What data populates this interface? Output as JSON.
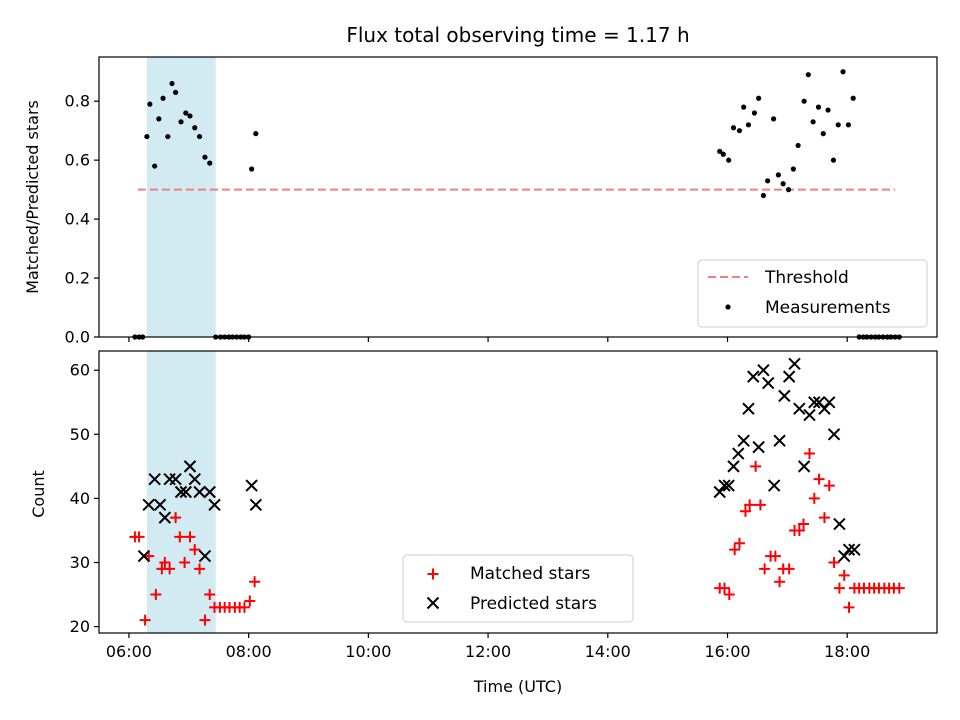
{
  "chart_data": [
    {
      "type": "scatter",
      "title": "Flux total observing time = 1.17 h",
      "xlabel": "",
      "ylabel": "Matched/Predicted stars",
      "xlim": [
        5.5,
        19.5
      ],
      "ylim": [
        0.0,
        0.95
      ],
      "yticks": [
        0.0,
        0.2,
        0.4,
        0.6,
        0.8
      ],
      "ytick_labels": [
        "0.0",
        "0.2",
        "0.4",
        "0.6",
        "0.8"
      ],
      "shaded_span": [
        6.3,
        7.45
      ],
      "shade_color": "#add8e6",
      "threshold": {
        "name": "Threshold",
        "y": 0.5,
        "x_range": [
          6.15,
          18.8
        ],
        "color": "#f08080"
      },
      "legend": {
        "position": "lower-right",
        "entries": [
          "Threshold",
          "Measurements"
        ]
      },
      "series": [
        {
          "name": "Measurements",
          "color": "#000000",
          "marker": "dot",
          "x": [
            6.1,
            6.17,
            6.23,
            6.3,
            6.35,
            6.43,
            6.5,
            6.57,
            6.65,
            6.72,
            6.78,
            6.87,
            6.95,
            7.02,
            7.1,
            7.18,
            7.27,
            7.35,
            7.45,
            7.53,
            7.6,
            7.67,
            7.73,
            7.8,
            7.87,
            7.93,
            8.0,
            8.05,
            8.12,
            15.87,
            15.93,
            16.02,
            16.1,
            16.2,
            16.27,
            16.35,
            16.45,
            16.52,
            16.6,
            16.67,
            16.77,
            16.85,
            16.93,
            17.02,
            17.1,
            17.18,
            17.28,
            17.35,
            17.43,
            17.52,
            17.6,
            17.68,
            17.77,
            17.85,
            17.93,
            18.02,
            18.1,
            18.2,
            18.27,
            18.33,
            18.4,
            18.47,
            18.53,
            18.6,
            18.67,
            18.73,
            18.8,
            18.87
          ],
          "y": [
            0.0,
            0.0,
            0.0,
            0.68,
            0.79,
            0.58,
            0.74,
            0.81,
            0.68,
            0.86,
            0.83,
            0.73,
            0.76,
            0.75,
            0.71,
            0.68,
            0.61,
            0.59,
            0.0,
            0.0,
            0.0,
            0.0,
            0.0,
            0.0,
            0.0,
            0.0,
            0.0,
            0.57,
            0.69,
            0.63,
            0.62,
            0.6,
            0.71,
            0.7,
            0.78,
            0.72,
            0.76,
            0.81,
            0.48,
            0.53,
            0.74,
            0.55,
            0.52,
            0.5,
            0.57,
            0.65,
            0.8,
            0.89,
            0.73,
            0.78,
            0.69,
            0.77,
            0.6,
            0.72,
            0.9,
            0.72,
            0.81,
            0.0,
            0.0,
            0.0,
            0.0,
            0.0,
            0.0,
            0.0,
            0.0,
            0.0,
            0.0,
            0.0
          ]
        }
      ]
    },
    {
      "type": "scatter",
      "title": "",
      "xlabel": "Time (UTC)",
      "ylabel": "Count",
      "xlim": [
        5.5,
        19.5
      ],
      "ylim": [
        19,
        63
      ],
      "xticks": [
        6,
        8,
        10,
        12,
        14,
        16,
        18
      ],
      "xtick_labels": [
        "06:00",
        "08:00",
        "10:00",
        "12:00",
        "14:00",
        "16:00",
        "18:00"
      ],
      "yticks": [
        20,
        30,
        40,
        50,
        60
      ],
      "ytick_labels": [
        "20",
        "30",
        "40",
        "50",
        "60"
      ],
      "shaded_span": [
        6.3,
        7.45
      ],
      "shade_color": "#add8e6",
      "legend": {
        "position": "lower-center",
        "entries": [
          "Matched stars",
          "Predicted stars"
        ]
      },
      "series": [
        {
          "name": "Matched stars",
          "color": "#ff0000",
          "marker": "plus",
          "x": [
            6.1,
            6.17,
            6.27,
            6.33,
            6.45,
            6.55,
            6.6,
            6.68,
            6.78,
            6.85,
            6.93,
            7.02,
            7.1,
            7.18,
            7.27,
            7.35,
            7.43,
            7.52,
            7.6,
            7.68,
            7.77,
            7.85,
            7.93,
            8.02,
            8.1,
            15.87,
            15.95,
            16.03,
            16.12,
            16.2,
            16.3,
            16.37,
            16.47,
            16.55,
            16.62,
            16.72,
            16.8,
            16.87,
            16.93,
            17.03,
            17.12,
            17.2,
            17.27,
            17.37,
            17.45,
            17.53,
            17.62,
            17.7,
            17.78,
            17.87,
            17.95,
            18.03,
            18.12,
            18.2,
            18.28,
            18.37,
            18.45,
            18.53,
            18.62,
            18.7,
            18.78,
            18.87
          ],
          "y": [
            34,
            34,
            21,
            31,
            25,
            29,
            30,
            29,
            37,
            34,
            30,
            34,
            32,
            29,
            21,
            25,
            23,
            23,
            23,
            23,
            23,
            23,
            23,
            24,
            27,
            26,
            26,
            25,
            32,
            33,
            38,
            39,
            45,
            39,
            29,
            31,
            31,
            27,
            29,
            29,
            35,
            35,
            36,
            47,
            40,
            43,
            37,
            42,
            30,
            26,
            28,
            23,
            26,
            26,
            26,
            26,
            26,
            26,
            26,
            26,
            26,
            26
          ]
        },
        {
          "name": "Predicted stars",
          "color": "#000000",
          "marker": "x",
          "x": [
            6.25,
            6.33,
            6.43,
            6.52,
            6.6,
            6.68,
            6.78,
            6.87,
            6.95,
            7.02,
            7.1,
            7.18,
            7.27,
            7.35,
            7.43,
            8.05,
            8.12,
            15.87,
            15.95,
            16.02,
            16.1,
            16.18,
            16.27,
            16.35,
            16.43,
            16.52,
            16.6,
            16.68,
            16.78,
            16.87,
            16.95,
            17.03,
            17.12,
            17.2,
            17.28,
            17.37,
            17.45,
            17.53,
            17.62,
            17.7,
            17.78,
            17.87,
            17.95,
            18.03,
            18.12
          ],
          "y": [
            31,
            39,
            43,
            39,
            37,
            43,
            43,
            41,
            41,
            45,
            43,
            41,
            31,
            41,
            39,
            42,
            39,
            41,
            42,
            42,
            45,
            47,
            49,
            54,
            59,
            48,
            60,
            58,
            42,
            49,
            56,
            59,
            61,
            54,
            45,
            53,
            55,
            55,
            54,
            55,
            50,
            36,
            31,
            32,
            32
          ]
        }
      ]
    }
  ]
}
